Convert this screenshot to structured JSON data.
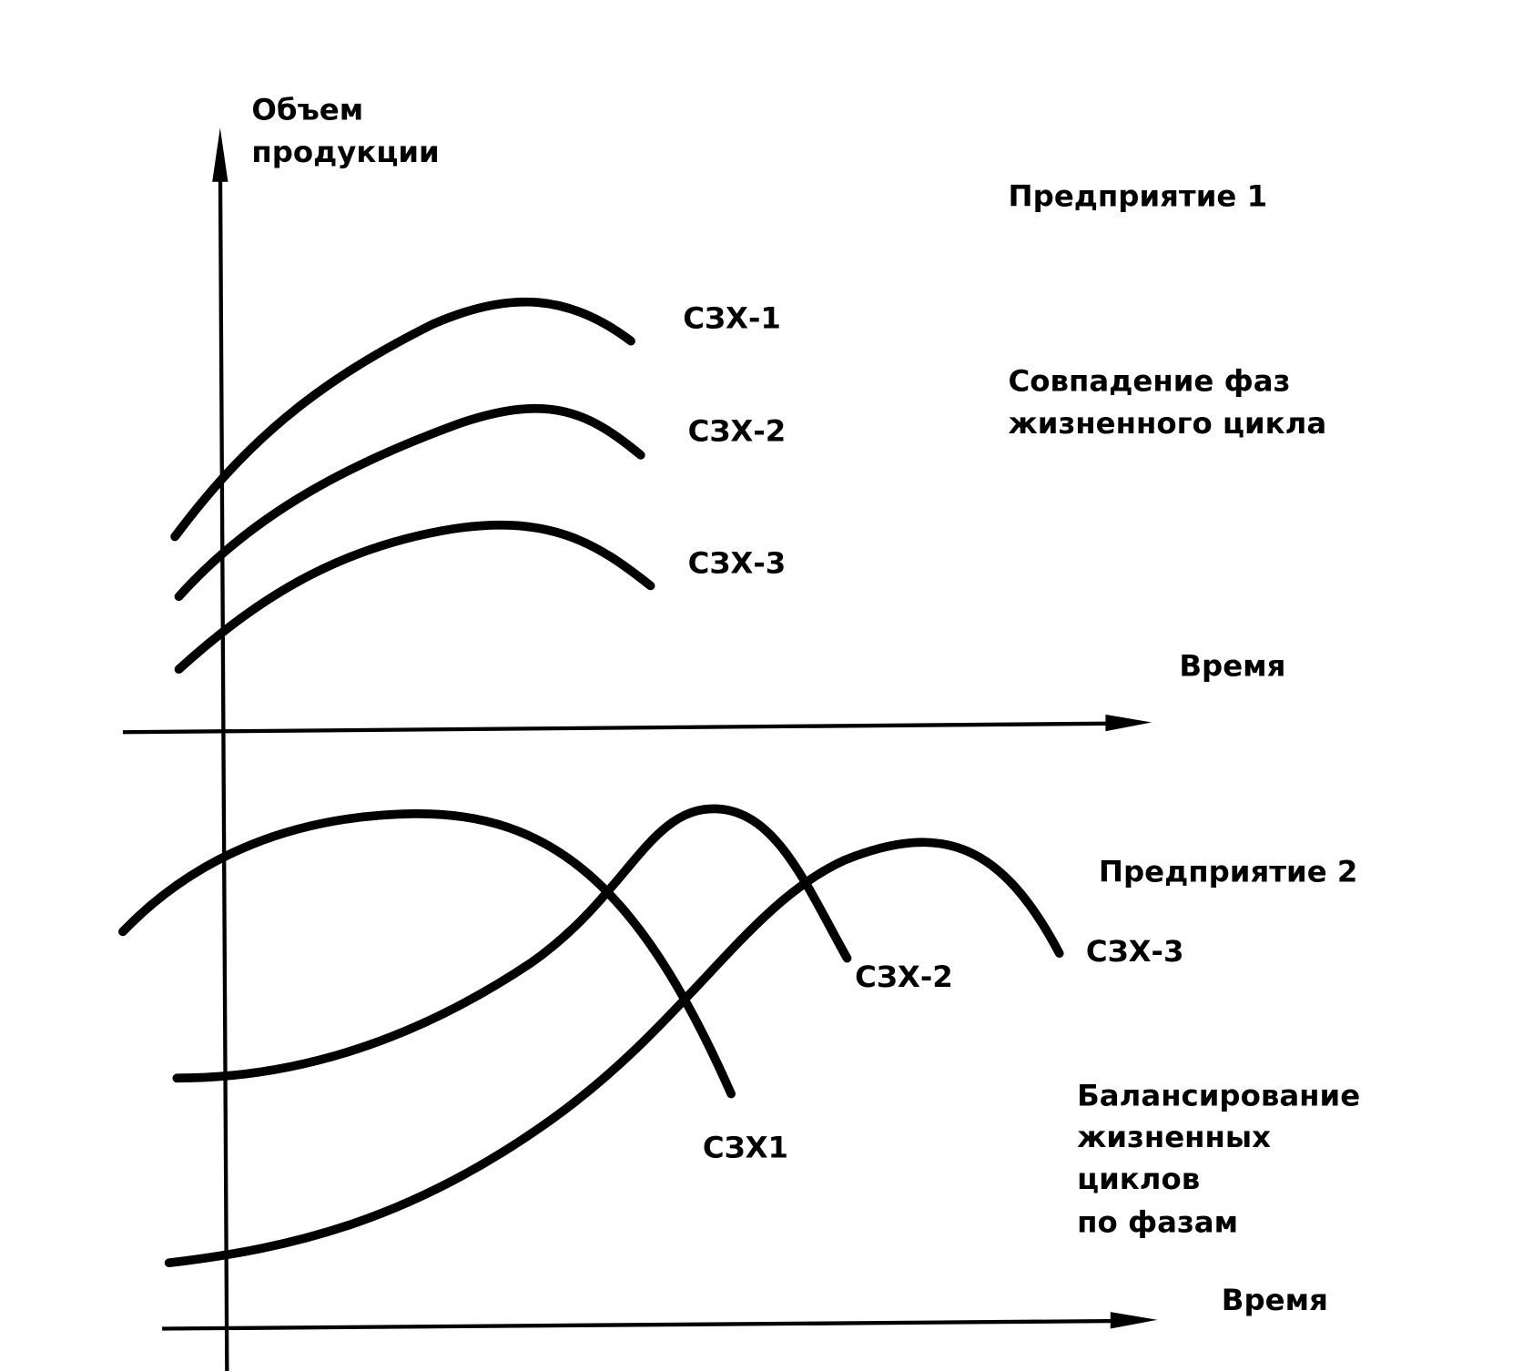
{
  "y_axis_label": [
    "Объем",
    "продукции"
  ],
  "top_panel": {
    "title": "Предприятие 1",
    "curve_labels": [
      "СЗХ-1",
      "СЗХ-2",
      "СЗХ-3"
    ],
    "description": [
      "Совпадение фаз",
      "жизненного цикла"
    ],
    "x_axis_label": "Время"
  },
  "bottom_panel": {
    "title": "Предприятие 2",
    "curve_labels": [
      "СЗХ1",
      "СЗХ-2",
      "СЗХ-3"
    ],
    "description": [
      "Балансирование",
      "жизненных",
      "циклов",
      "по фазам"
    ],
    "x_axis_label": "Время"
  }
}
